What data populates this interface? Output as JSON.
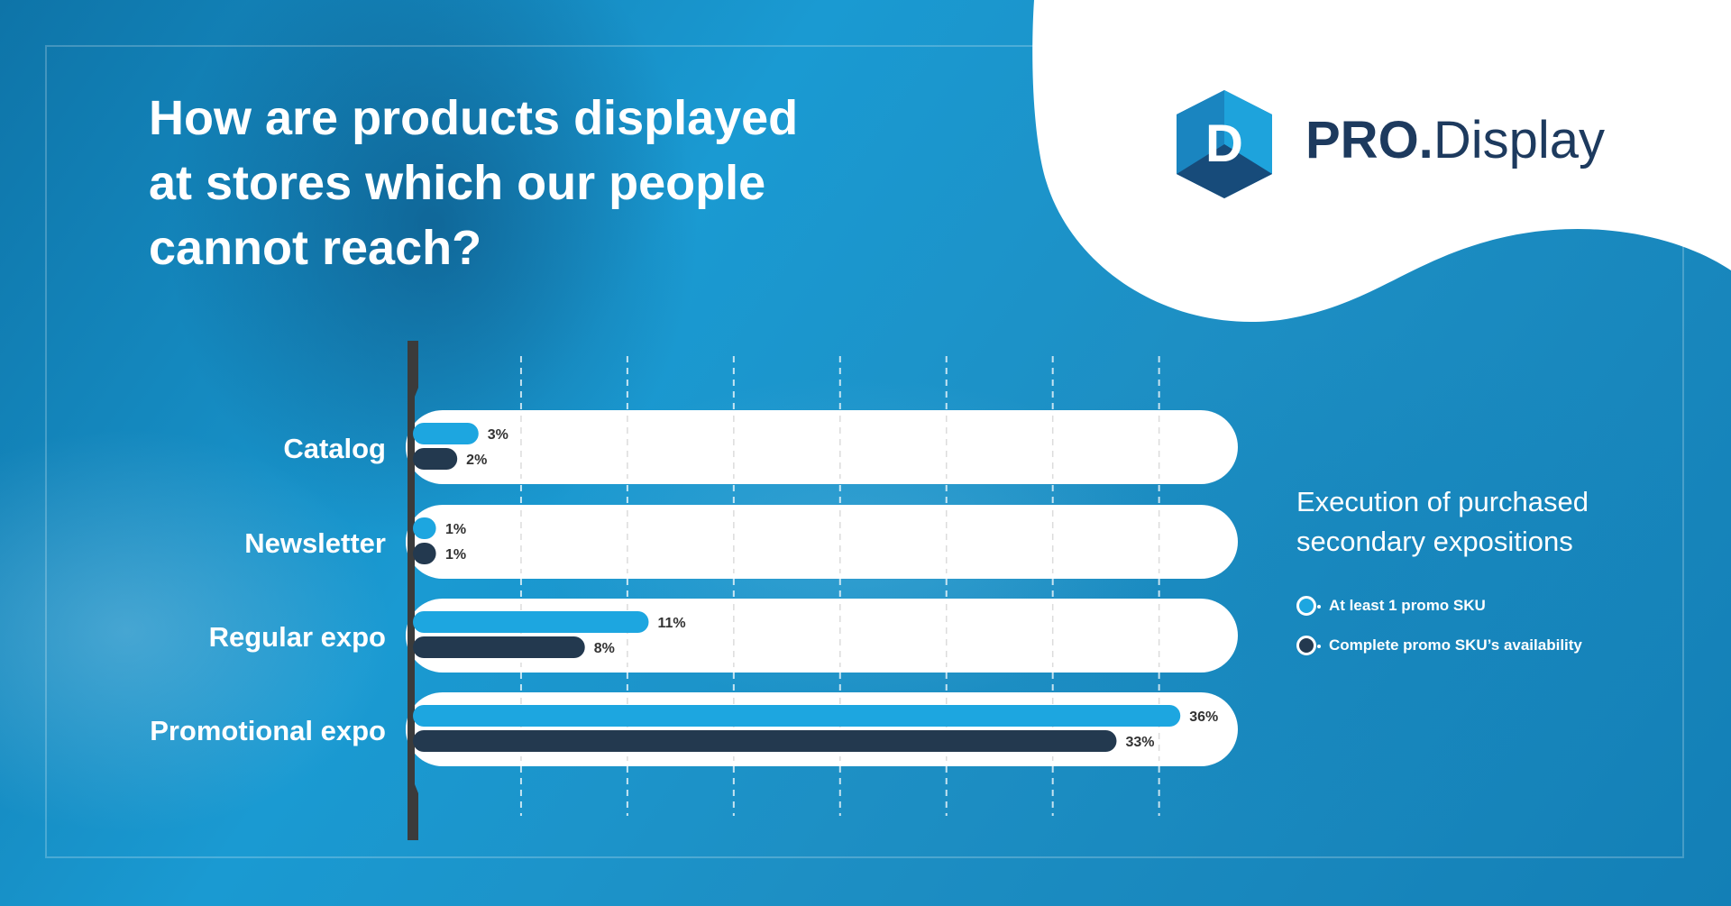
{
  "title_lines": [
    "How are products displayed",
    "at stores which our people",
    "cannot reach?"
  ],
  "logo": {
    "letter": "D",
    "name_bold": "PRO.",
    "name_rest": "Display"
  },
  "legend": {
    "title_lines": [
      "Execution of purchased",
      "secondary expositions"
    ],
    "items": [
      {
        "label": "At least 1 promo SKU",
        "color": "#1da6e0"
      },
      {
        "label": "Complete promo SKU’s availability",
        "color": "#23394f"
      }
    ]
  },
  "colors": {
    "series1": "#1da6e0",
    "series2": "#23394f",
    "track": "#ffffff",
    "axis": "#3b3b3b",
    "brand": "#1d3a5e"
  },
  "chart_data": {
    "type": "bar",
    "orientation": "horizontal",
    "categories": [
      "Catalog",
      "Newsletter",
      "Regular expo",
      "Promotional expo"
    ],
    "series": [
      {
        "name": "At least 1 promo SKU",
        "values": [
          3,
          1,
          11,
          36
        ],
        "labels": [
          "3%",
          "1%",
          "11%",
          "36%"
        ]
      },
      {
        "name": "Complete promo SKU’s availability",
        "values": [
          2,
          1,
          8,
          33
        ],
        "labels": [
          "2%",
          "1%",
          "8%",
          "33%"
        ]
      }
    ],
    "xlim": [
      0,
      39
    ],
    "gridlines": [
      5,
      10,
      15,
      20,
      25,
      30,
      35
    ],
    "grid": true,
    "legend_position": "right"
  }
}
